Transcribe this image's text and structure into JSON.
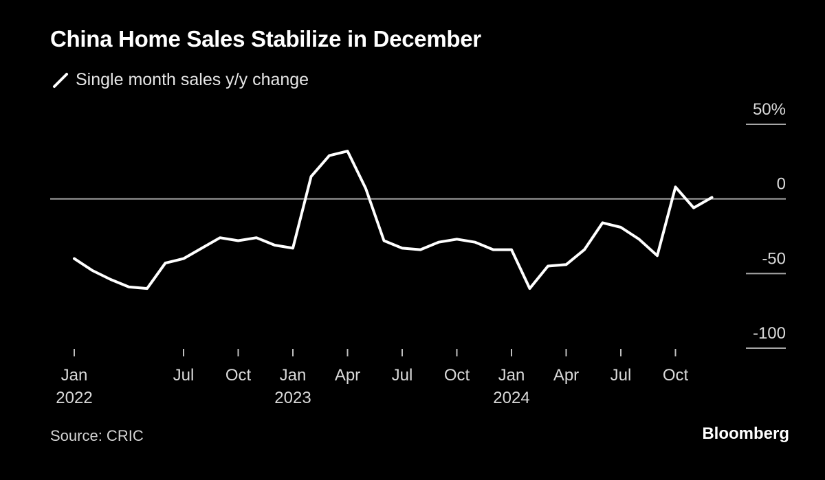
{
  "title": "China Home Sales Stabilize in December",
  "legend_label": "Single month sales y/y change",
  "source": "Source: CRIC",
  "brand": "Bloomberg",
  "colors": {
    "background": "#000000",
    "line": "#ffffff",
    "zero_line": "#a6a6a6",
    "text": "#d9d9d9"
  },
  "chart_data": {
    "type": "line",
    "title": "China Home Sales Stabilize in December",
    "xlabel": "",
    "ylabel": "",
    "ylim": [
      -100,
      50
    ],
    "y_ticks": [
      {
        "value": 50,
        "label": "50%"
      },
      {
        "value": 0,
        "label": "0"
      },
      {
        "value": -50,
        "label": "-50"
      },
      {
        "value": -100,
        "label": "-100"
      }
    ],
    "x_ticks": [
      {
        "index": 0,
        "label": "Jan",
        "sub": "2022"
      },
      {
        "index": 6,
        "label": "Jul",
        "sub": ""
      },
      {
        "index": 9,
        "label": "Oct",
        "sub": ""
      },
      {
        "index": 12,
        "label": "Jan",
        "sub": "2023"
      },
      {
        "index": 15,
        "label": "Apr",
        "sub": ""
      },
      {
        "index": 18,
        "label": "Jul",
        "sub": ""
      },
      {
        "index": 21,
        "label": "Oct",
        "sub": ""
      },
      {
        "index": 24,
        "label": "Jan",
        "sub": "2024"
      },
      {
        "index": 27,
        "label": "Apr",
        "sub": ""
      },
      {
        "index": 30,
        "label": "Jul",
        "sub": ""
      },
      {
        "index": 33,
        "label": "Oct",
        "sub": ""
      }
    ],
    "x": [
      "2022-01",
      "2022-02",
      "2022-03",
      "2022-04",
      "2022-05",
      "2022-06",
      "2022-07",
      "2022-08",
      "2022-09",
      "2022-10",
      "2022-11",
      "2022-12",
      "2023-01",
      "2023-02",
      "2023-03",
      "2023-04",
      "2023-05",
      "2023-06",
      "2023-07",
      "2023-08",
      "2023-09",
      "2023-10",
      "2023-11",
      "2023-12",
      "2024-01",
      "2024-02",
      "2024-03",
      "2024-04",
      "2024-05",
      "2024-06",
      "2024-07",
      "2024-08",
      "2024-09",
      "2024-10",
      "2024-11",
      "2024-12"
    ],
    "series": [
      {
        "name": "Single month sales y/y change",
        "values": [
          -40,
          -48,
          -54,
          -59,
          -60,
          -43,
          -40,
          -33,
          -26,
          -28,
          -26,
          -31,
          -33,
          15,
          29,
          32,
          7,
          -28,
          -33,
          -34,
          -29,
          -27,
          -29,
          -34,
          -34,
          -60,
          -45,
          -44,
          -34,
          -16,
          -19,
          -27,
          -38,
          8,
          -6,
          1
        ]
      }
    ],
    "zero_line": true,
    "grid": false,
    "legend_position": "top-left"
  }
}
